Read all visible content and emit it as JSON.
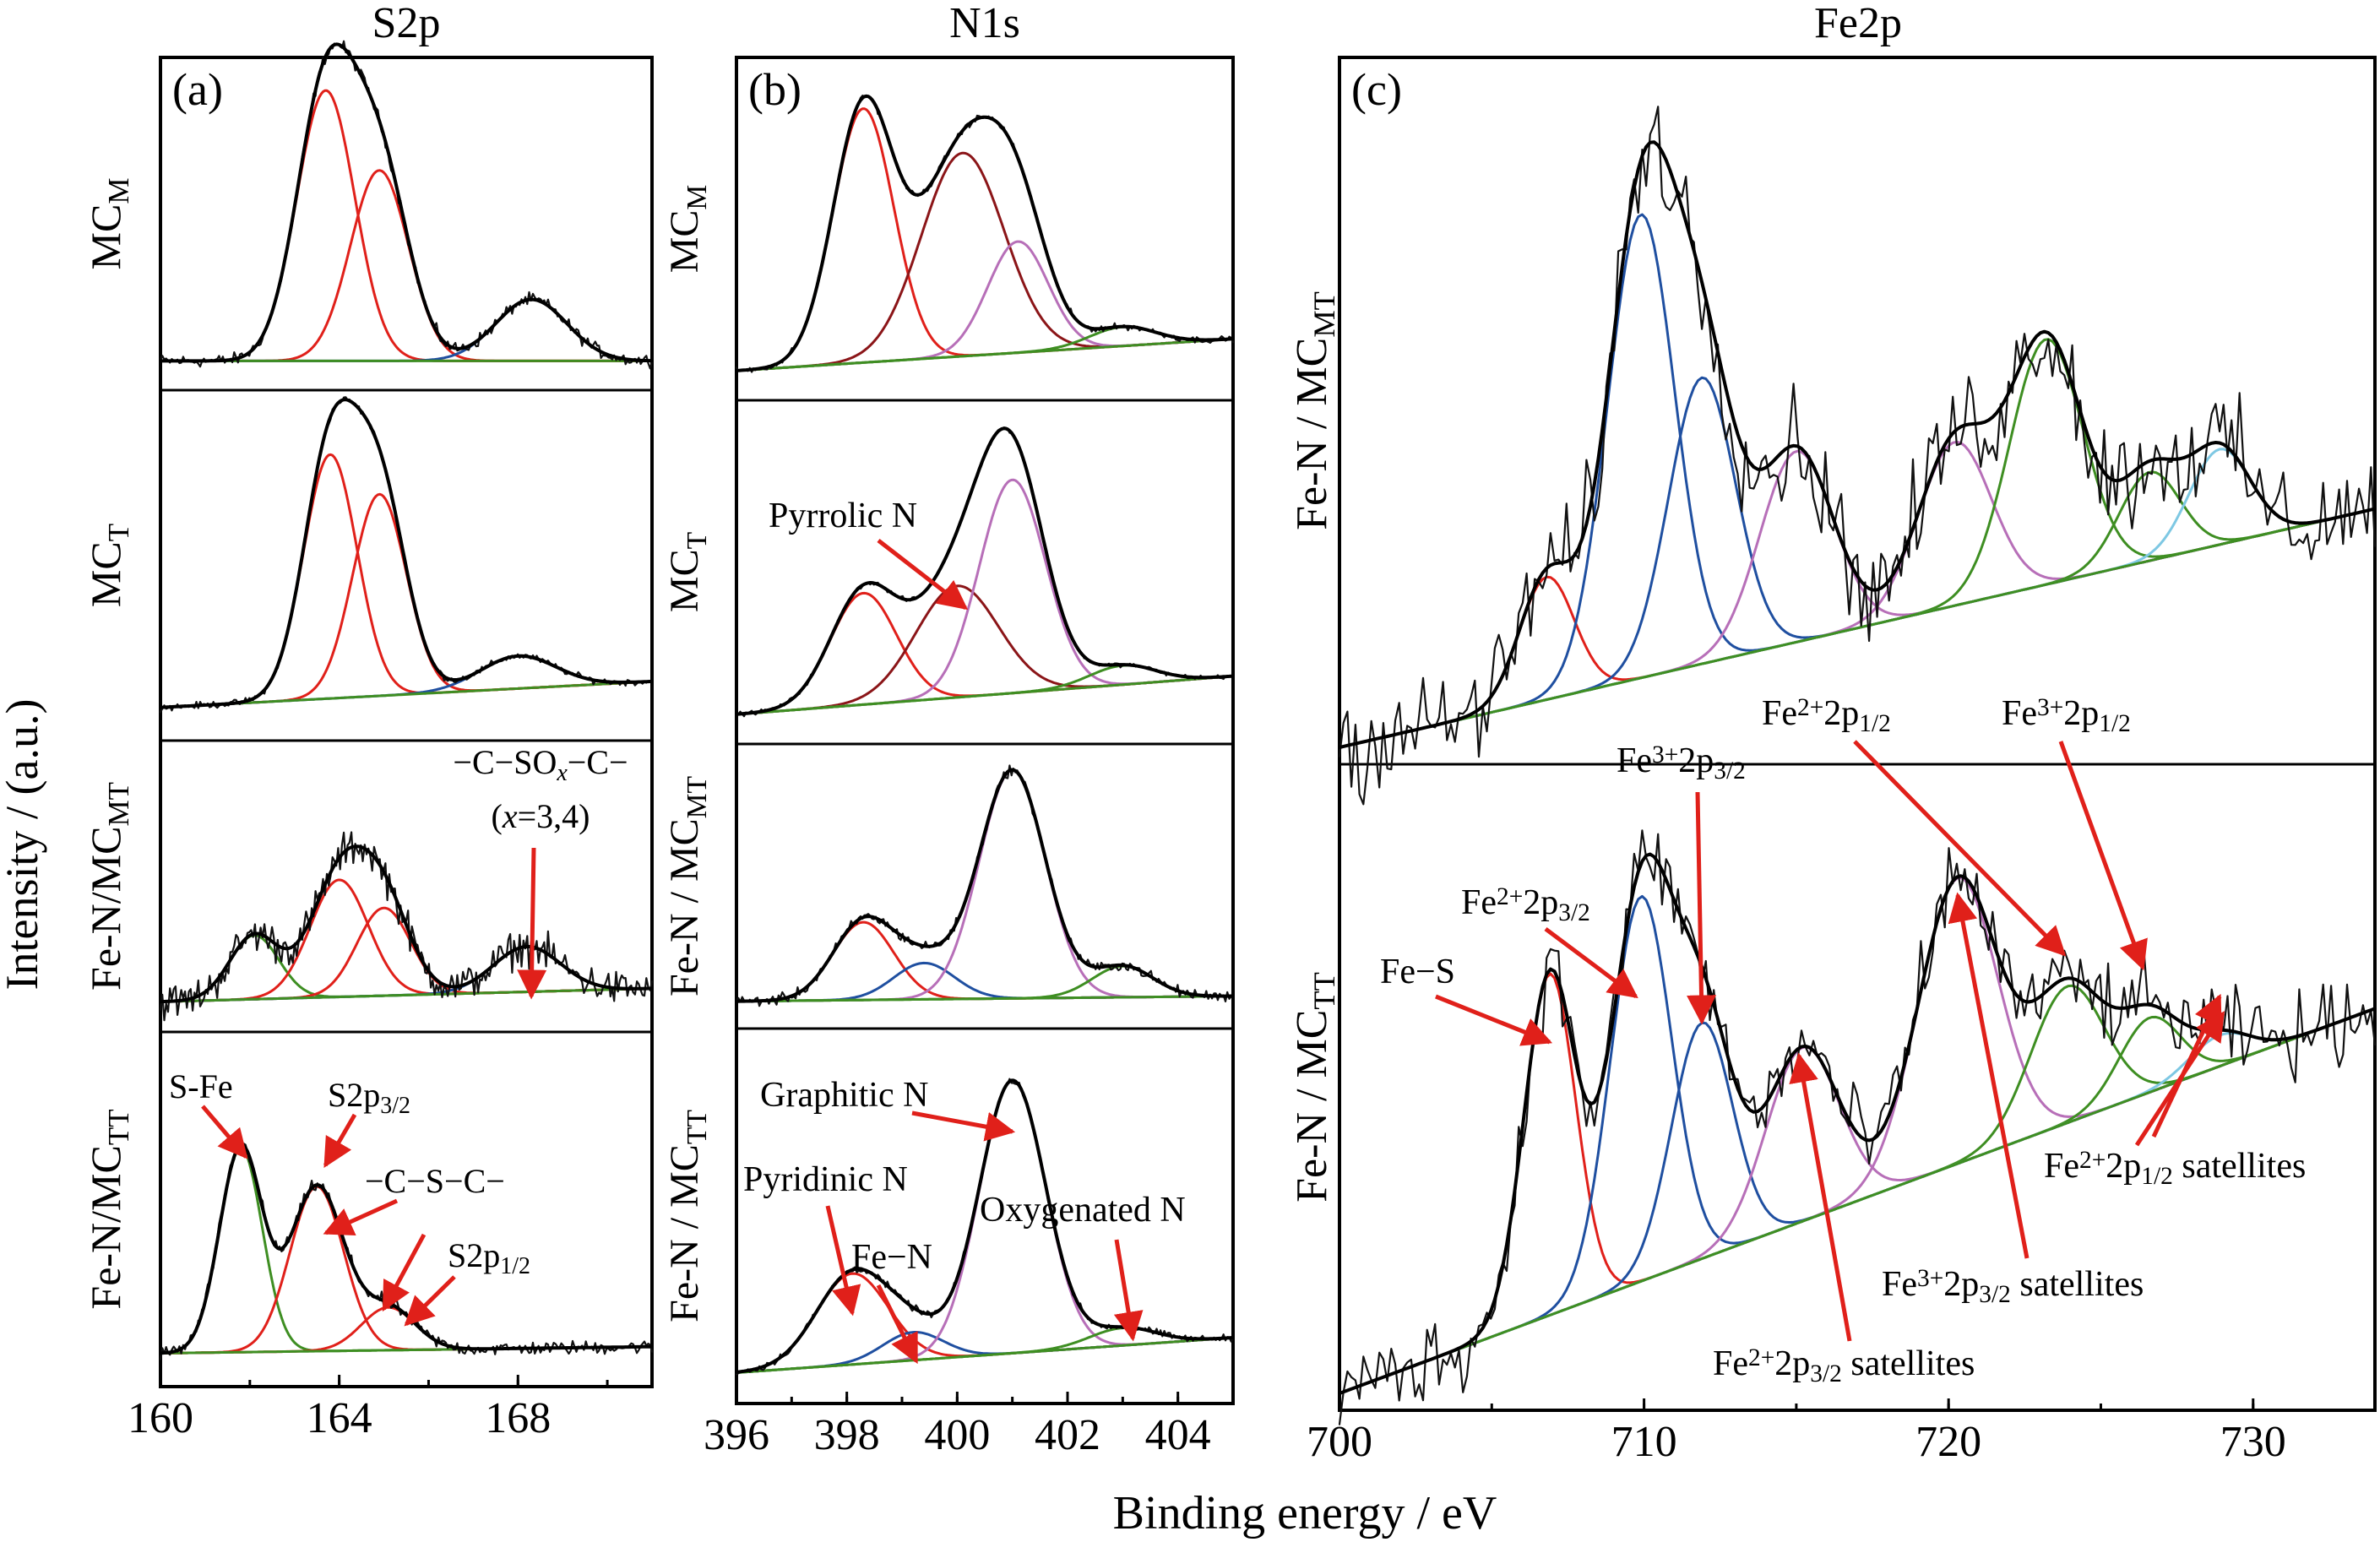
{
  "figure": {
    "ylabel": "Intensity / (a.u.)",
    "xlabel": "Binding energy / eV"
  },
  "colors": {
    "raw": "#111111",
    "envelope": "#000000",
    "red": "#e0201a",
    "darkred": "#8b1518",
    "blue": "#1f4fa0",
    "magenta": "#b76fb8",
    "green": "#3e8e22",
    "lightblue": "#7ec8e3",
    "annotation": "#e0201a"
  },
  "chart_data": [
    {
      "id": "a",
      "type": "line",
      "title": "S2p",
      "panel_label": "(a)",
      "xlim": [
        160,
        171
      ],
      "xticks": [
        "160",
        "164",
        "168"
      ],
      "xtick_values": [
        160,
        164,
        168
      ],
      "stacks": [
        {
          "label": "MC",
          "label_sub": "M",
          "baseline": [
            0.04,
            0.04
          ],
          "peaks": [
            {
              "center": 163.7,
              "height": 0.88,
              "width": 0.65,
              "color": "red"
            },
            {
              "center": 164.9,
              "height": 0.62,
              "width": 0.65,
              "color": "red"
            },
            {
              "center": 168.3,
              "height": 0.2,
              "width": 0.8,
              "color": "blue"
            }
          ],
          "noise": 0.03
        },
        {
          "label": "MC",
          "label_sub": "T",
          "baseline": [
            0.05,
            0.13
          ],
          "peaks": [
            {
              "center": 163.8,
              "height": 0.75,
              "width": 0.6,
              "color": "red"
            },
            {
              "center": 164.9,
              "height": 0.62,
              "width": 0.6,
              "color": "red"
            },
            {
              "center": 168.0,
              "height": 0.1,
              "width": 0.85,
              "color": "blue"
            }
          ],
          "noise": 0.015
        },
        {
          "label": "Fe-N/MC",
          "label_sub": "MT",
          "baseline": [
            0.05,
            0.1
          ],
          "peaks": [
            {
              "center": 162.1,
              "height": 0.24,
              "width": 0.55,
              "color": "green"
            },
            {
              "center": 164.0,
              "height": 0.44,
              "width": 0.65,
              "color": "red"
            },
            {
              "center": 165.0,
              "height": 0.33,
              "width": 0.6,
              "color": "red"
            },
            {
              "center": 168.2,
              "height": 0.17,
              "width": 0.75,
              "color": "blue"
            }
          ],
          "noise": 0.1
        },
        {
          "label": "Fe-N/MC",
          "label_sub": "TT",
          "baseline": [
            0.05,
            0.07
          ],
          "peaks": [
            {
              "center": 161.8,
              "height": 0.62,
              "width": 0.48,
              "color": "green"
            },
            {
              "center": 163.5,
              "height": 0.5,
              "width": 0.6,
              "color": "red"
            },
            {
              "center": 165.1,
              "height": 0.13,
              "width": 0.6,
              "color": "red"
            }
          ],
          "noise": 0.03
        }
      ],
      "annotations": [
        {
          "text": "S-Fe",
          "x": 161.8,
          "y_frac": 0.87
        },
        {
          "text": "S2p",
          "sub": "3/2",
          "x": 163.5,
          "y_frac": 0.7
        },
        {
          "text": "−C−S−C−",
          "x": 164.7,
          "y_frac": 0.62
        },
        {
          "text": "S2p",
          "sub": "1/2",
          "x": 165.3,
          "y_frac": 0.25
        },
        {
          "text_parts": [
            "−C−SO",
            "x",
            "−C−"
          ],
          "line2": "(x=3,4)",
          "x": 168.3
        }
      ]
    },
    {
      "id": "b",
      "type": "line",
      "title": "N1s",
      "panel_label": "(b)",
      "xlim": [
        396,
        405
      ],
      "xticks": [
        "396",
        "398",
        "400",
        "402",
        "404"
      ],
      "xtick_values": [
        396,
        398,
        400,
        402,
        404
      ],
      "stacks": [
        {
          "label": "MC",
          "label_sub": "M",
          "baseline": [
            0.04,
            0.14
          ],
          "peaks": [
            {
              "center": 398.3,
              "height": 0.8,
              "width": 0.55,
              "color": "red"
            },
            {
              "center": 400.1,
              "height": 0.64,
              "width": 0.75,
              "color": "darkred"
            },
            {
              "center": 401.1,
              "height": 0.35,
              "width": 0.55,
              "color": "magenta"
            },
            {
              "center": 403.0,
              "height": 0.06,
              "width": 0.6,
              "color": "green"
            }
          ],
          "noise": 0.015
        },
        {
          "label": "MC",
          "label_sub": "T",
          "baseline": [
            0.04,
            0.16
          ],
          "peaks": [
            {
              "center": 398.3,
              "height": 0.35,
              "width": 0.6,
              "color": "red"
            },
            {
              "center": 400.0,
              "height": 0.35,
              "width": 0.75,
              "color": "darkred"
            },
            {
              "center": 401.0,
              "height": 0.67,
              "width": 0.6,
              "color": "magenta"
            },
            {
              "center": 403.0,
              "height": 0.06,
              "width": 0.6,
              "color": "green"
            }
          ],
          "noise": 0.01
        },
        {
          "label": "Fe-N / MC",
          "label_sub": "MT",
          "baseline": [
            0.04,
            0.06
          ],
          "peaks": [
            {
              "center": 398.3,
              "height": 0.3,
              "width": 0.55,
              "color": "red"
            },
            {
              "center": 399.4,
              "height": 0.14,
              "width": 0.55,
              "color": "blue"
            },
            {
              "center": 401.0,
              "height": 0.88,
              "width": 0.6,
              "color": "magenta"
            },
            {
              "center": 403.0,
              "height": 0.12,
              "width": 0.55,
              "color": "green"
            }
          ],
          "noise": 0.03
        },
        {
          "label": "Fe-N / MC",
          "label_sub": "TT",
          "baseline": [
            0.04,
            0.14
          ],
          "peaks": [
            {
              "center": 398.1,
              "height": 0.26,
              "width": 0.65,
              "color": "red"
            },
            {
              "center": 399.2,
              "height": 0.08,
              "width": 0.55,
              "color": "blue"
            },
            {
              "center": 401.0,
              "height": 0.78,
              "width": 0.6,
              "color": "magenta"
            },
            {
              "center": 403.0,
              "height": 0.05,
              "width": 0.6,
              "color": "green"
            }
          ],
          "noise": 0.015
        }
      ],
      "annotations": [
        {
          "text": "Pyrrolic N",
          "x": 400.0
        },
        {
          "text": "Graphitic N",
          "x": 401.0
        },
        {
          "text": "Pyridinic N",
          "x": 398.1
        },
        {
          "text": "Fe−N",
          "x": 399.2
        },
        {
          "text": "Oxygenated N",
          "x": 403.0
        }
      ]
    },
    {
      "id": "c",
      "type": "line",
      "title": "Fe2p",
      "panel_label": "(c)",
      "xlim": [
        700,
        734
      ],
      "xticks": [
        "700",
        "710",
        "720",
        "730"
      ],
      "xtick_values": [
        700,
        710,
        720,
        730
      ],
      "stacks": [
        {
          "label": "Fe-N / MC",
          "label_sub": "MT",
          "baseline": [
            0.0,
            0.35
          ],
          "peaks": [
            {
              "center": 706.8,
              "height": 0.18,
              "width": 0.9,
              "color": "red"
            },
            {
              "center": 709.9,
              "height": 0.68,
              "width": 1.1,
              "color": "blue"
            },
            {
              "center": 711.9,
              "height": 0.42,
              "width": 1.1,
              "color": "blue"
            },
            {
              "center": 715.0,
              "height": 0.28,
              "width": 1.2,
              "color": "magenta"
            },
            {
              "center": 720.2,
              "height": 0.24,
              "width": 1.2,
              "color": "magenta"
            },
            {
              "center": 723.2,
              "height": 0.36,
              "width": 1.2,
              "color": "green"
            },
            {
              "center": 726.6,
              "height": 0.13,
              "width": 1.0,
              "color": "green"
            },
            {
              "center": 728.9,
              "height": 0.14,
              "width": 1.0,
              "color": "lightblue"
            }
          ],
          "noise": 0.12
        },
        {
          "label": "Fe-N / MC",
          "label_sub": "TT",
          "baseline": [
            0.0,
            0.62
          ],
          "peaks": [
            {
              "center": 706.9,
              "height": 0.55,
              "width": 0.85,
              "color": "red"
            },
            {
              "center": 709.9,
              "height": 0.62,
              "width": 1.0,
              "color": "blue"
            },
            {
              "center": 711.9,
              "height": 0.38,
              "width": 1.0,
              "color": "blue"
            },
            {
              "center": 715.2,
              "height": 0.28,
              "width": 1.2,
              "color": "magenta"
            },
            {
              "center": 720.3,
              "height": 0.46,
              "width": 1.3,
              "color": "magenta"
            },
            {
              "center": 723.9,
              "height": 0.22,
              "width": 1.2,
              "color": "green"
            },
            {
              "center": 726.6,
              "height": 0.12,
              "width": 1.0,
              "color": "green"
            },
            {
              "center": 728.9,
              "height": 0.05,
              "width": 1.0,
              "color": "lightblue"
            }
          ],
          "noise": 0.1
        }
      ],
      "annotations": [
        {
          "text": "Fe−S",
          "x": 706.9
        },
        {
          "text": "Fe",
          "sup": "2+",
          "rest": "2p",
          "sub": "3/2",
          "x": 709.9
        },
        {
          "text": "Fe",
          "sup": "3+",
          "rest": "2p",
          "sub": "3/2",
          "x": 711.9
        },
        {
          "text": "Fe",
          "sup": "2+",
          "rest": "2p",
          "sub": "1/2",
          "x": 723.9
        },
        {
          "text": "Fe",
          "sup": "3+",
          "rest": "2p",
          "sub": "1/2",
          "x": 726.6
        },
        {
          "text": "Fe",
          "sup": "2+",
          "rest": "2p",
          "sub": "1/2",
          "tail": " satellites",
          "x": 728.9
        },
        {
          "text": "Fe",
          "sup": "3+",
          "rest": "2p",
          "sub": "3/2",
          "tail": " satellites",
          "x": 720.3
        },
        {
          "text": "Fe",
          "sup": "2+",
          "rest": "2p",
          "sub": "3/2",
          "tail": " satellites",
          "x": 715.2
        }
      ]
    }
  ]
}
